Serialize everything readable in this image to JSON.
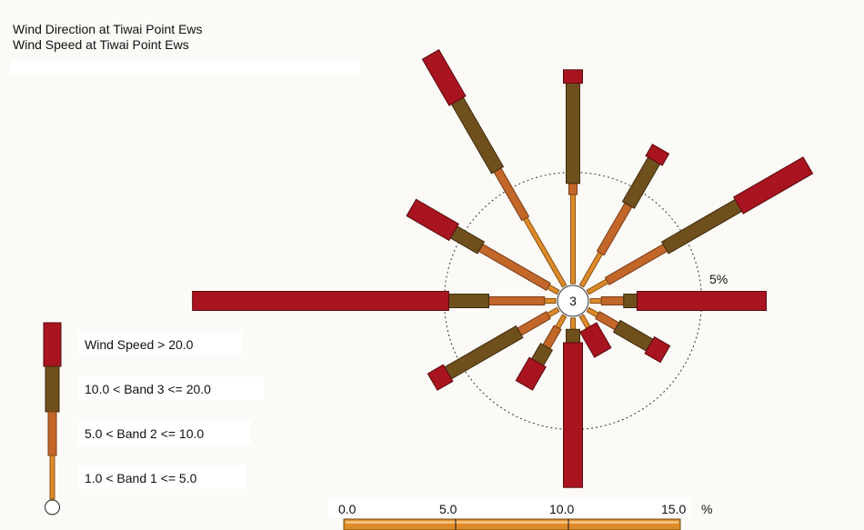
{
  "titles": [
    "Wind Direction at Tiwai Point Ews",
    "Wind Speed at Tiwai Point Ews"
  ],
  "chart_data": {
    "type": "wind-rose",
    "calm_count": "3",
    "ring_label": "5%",
    "ring_value": 5,
    "unit_label": "%",
    "scale_ticks": [
      "0.0",
      "5.0",
      "10.0",
      "15.0"
    ],
    "scale_values": [
      0,
      5,
      10,
      15
    ],
    "bands": [
      {
        "name": "1.0 < Band 1 <= 5.0",
        "color": "#dd8a2a"
      },
      {
        "name": "5.0 < Band 2 <= 10.0",
        "color": "#c2662a"
      },
      {
        "name": "10.0 < Band 3 <= 20.0",
        "color": "#6f4f1c"
      },
      {
        "name": "Wind Speed > 20.0",
        "color": "#a8141f"
      }
    ],
    "directions": [
      {
        "deg": 0,
        "band1": 4.0,
        "band2": 0.5,
        "band3": 4.5,
        "band4": 0.6
      },
      {
        "deg": 30,
        "band1": 1.7,
        "band2": 2.5,
        "band3": 2.3,
        "band4": 0.6
      },
      {
        "deg": 60,
        "band1": 1.0,
        "band2": 3.0,
        "band3": 3.8,
        "band4": 3.6
      },
      {
        "deg": 90,
        "band1": 0.5,
        "band2": 1.0,
        "band3": 0.6,
        "band4": 5.8
      },
      {
        "deg": 120,
        "band1": 0.5,
        "band2": 1.0,
        "band3": 1.7,
        "band4": 0.8
      },
      {
        "deg": 150,
        "band1": 0.6,
        "band2": 0.0,
        "band3": 0.0,
        "band4": 1.3
      },
      {
        "deg": 180,
        "band1": 0.5,
        "band2": 0.0,
        "band3": 0.6,
        "band4": 6.5
      },
      {
        "deg": 210,
        "band1": 0.6,
        "band2": 1.0,
        "band3": 0.8,
        "band4": 1.2
      },
      {
        "deg": 240,
        "band1": 0.5,
        "band2": 1.5,
        "band3": 3.7,
        "band4": 0.8
      },
      {
        "deg": 270,
        "band1": 0.5,
        "band2": 2.5,
        "band3": 1.8,
        "band4": 11.5
      },
      {
        "deg": 300,
        "band1": 0.5,
        "band2": 3.5,
        "band3": 1.4,
        "band4": 2.2
      },
      {
        "deg": 330,
        "band1": 3.5,
        "band2": 2.5,
        "band3": 3.6,
        "band4": 2.4
      }
    ]
  }
}
